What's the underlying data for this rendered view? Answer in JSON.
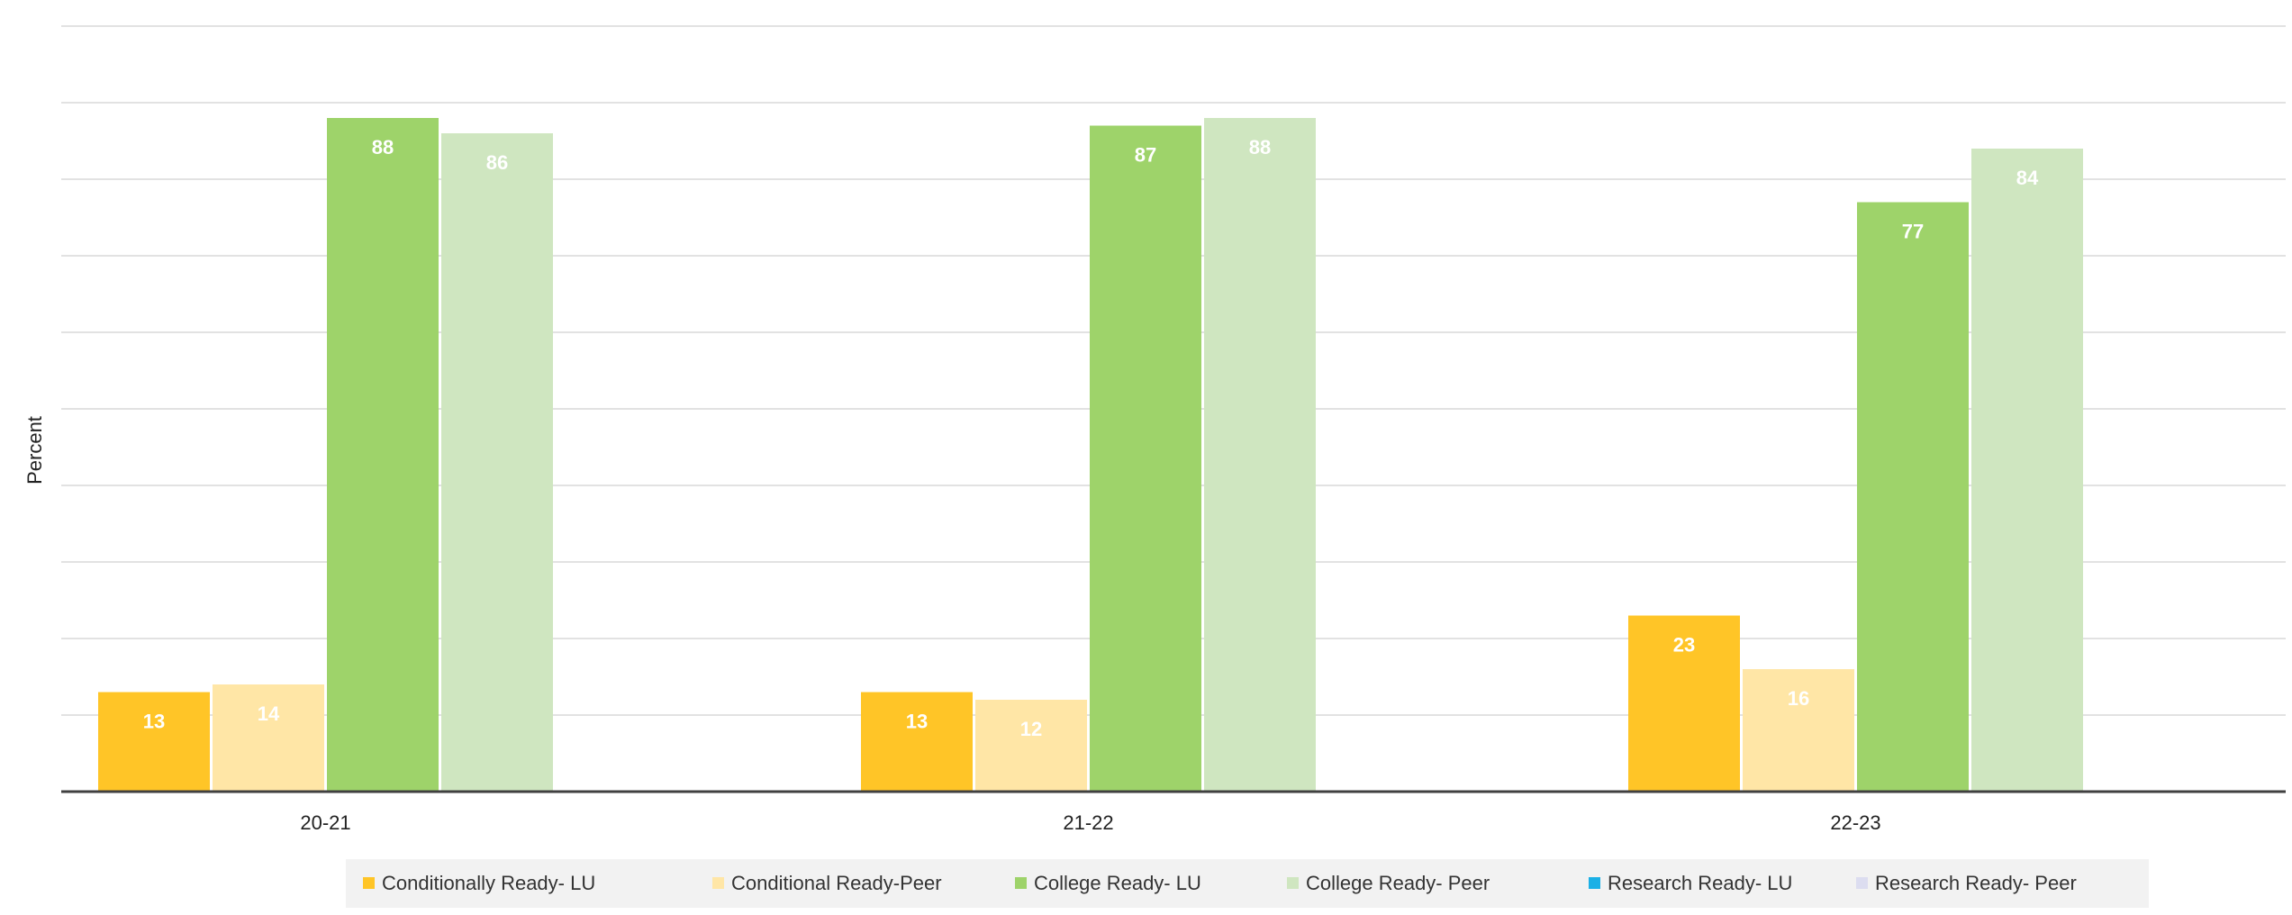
{
  "chart_data": {
    "type": "bar",
    "title": "",
    "xlabel": "",
    "ylabel": "Percent",
    "ylim": [
      0,
      100
    ],
    "grid": true,
    "legend_position": "bottom",
    "categories": [
      "20-21",
      "21-22",
      "22-23"
    ],
    "series": [
      {
        "name": "Conditionally Ready- LU",
        "color": "#FFC527",
        "values": [
          13,
          13,
          23
        ]
      },
      {
        "name": "Conditional Ready-Peer",
        "color": "#FFE6A6",
        "values": [
          14,
          12,
          16
        ]
      },
      {
        "name": "College Ready- LU",
        "color": "#9ED36A",
        "values": [
          88,
          87,
          77
        ]
      },
      {
        "name": "College Ready- Peer",
        "color": "#CFE6C0",
        "values": [
          86,
          88,
          84
        ]
      },
      {
        "name": "Research Ready- LU",
        "color": "#1BB0E6",
        "values": [
          null,
          null,
          null
        ]
      },
      {
        "name": "Research Ready- Peer",
        "color": "#DCDDF0",
        "values": [
          null,
          null,
          null
        ]
      }
    ]
  }
}
